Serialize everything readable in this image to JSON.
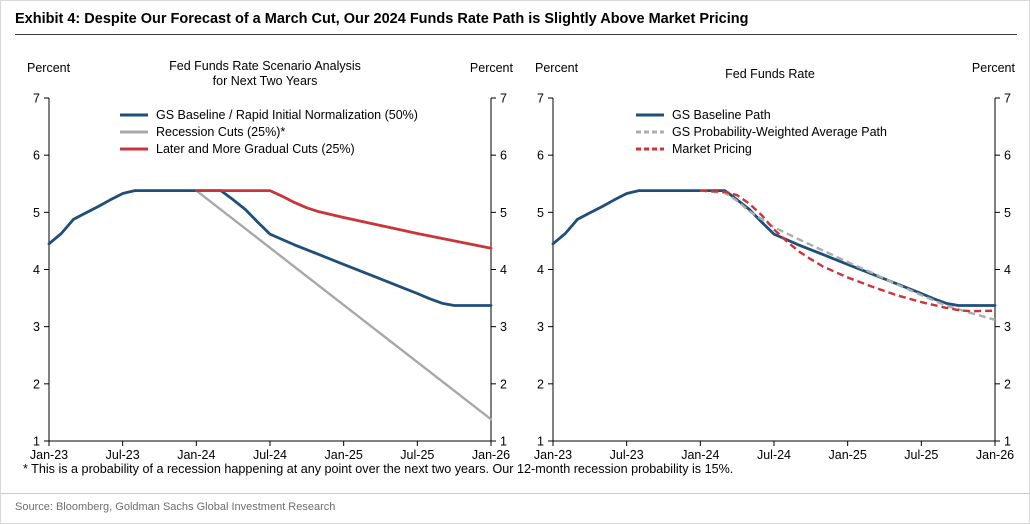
{
  "page": {
    "title": "Exhibit 4: Despite Our Forecast of a March Cut, Our 2024 Funds Rate Path is Slightly Above Market Pricing",
    "footnote": "* This is a probability of a recession happening at any point over the next two years.  Our 12-month recession probability is 15%.",
    "source": "Source: Bloomberg, Goldman Sachs Global Investment Research"
  },
  "chart_data": [
    {
      "type": "line",
      "title_lines": [
        "Fed Funds Rate Scenario Analysis",
        "for Next Two Years"
      ],
      "ylabel_left": "Percent",
      "ylabel_right": "Percent",
      "ylim": [
        1,
        7
      ],
      "xlim": [
        0,
        36
      ],
      "x_unit_note": "months since Jan-2023",
      "grid": false,
      "legend_position": "top-left-inside",
      "y_ticks": [
        1,
        2,
        3,
        4,
        5,
        6,
        7
      ],
      "x_ticks": [
        {
          "pos": 0,
          "label": "Jan-23"
        },
        {
          "pos": 6,
          "label": "Jul-23"
        },
        {
          "pos": 12,
          "label": "Jan-24"
        },
        {
          "pos": 18,
          "label": "Jul-24"
        },
        {
          "pos": 24,
          "label": "Jan-25"
        },
        {
          "pos": 30,
          "label": "Jul-25"
        },
        {
          "pos": 36,
          "label": "Jan-26"
        }
      ],
      "series": [
        {
          "name": "GS Baseline / Rapid Initial Normalization (50%)",
          "color": "#1f4e79",
          "dash": "solid",
          "width": 2.8,
          "points": [
            [
              0,
              4.45
            ],
            [
              1,
              4.63
            ],
            [
              2,
              4.88
            ],
            [
              3,
              4.99
            ],
            [
              4,
              5.1
            ],
            [
              5,
              5.22
            ],
            [
              6,
              5.33
            ],
            [
              7,
              5.38
            ],
            [
              14,
              5.38
            ],
            [
              15,
              5.22
            ],
            [
              16,
              5.05
            ],
            [
              17,
              4.83
            ],
            [
              18,
              4.62
            ],
            [
              20,
              4.43
            ],
            [
              22,
              4.26
            ],
            [
              24,
              4.09
            ],
            [
              26,
              3.92
            ],
            [
              28,
              3.75
            ],
            [
              30,
              3.58
            ],
            [
              31,
              3.49
            ],
            [
              32,
              3.41
            ],
            [
              33,
              3.37
            ],
            [
              36,
              3.37
            ]
          ]
        },
        {
          "name": "Recession Cuts (25%)*",
          "color": "#a8a8a8",
          "dash": "solid",
          "width": 2.4,
          "points": [
            [
              0,
              4.45
            ],
            [
              1,
              4.63
            ],
            [
              2,
              4.88
            ],
            [
              3,
              4.99
            ],
            [
              4,
              5.1
            ],
            [
              5,
              5.22
            ],
            [
              6,
              5.33
            ],
            [
              7,
              5.38
            ],
            [
              12,
              5.38
            ],
            [
              36,
              1.38
            ]
          ]
        },
        {
          "name": "Later and More Gradual Cuts (25%)",
          "color": "#c9353a",
          "dash": "solid",
          "width": 2.8,
          "points": [
            [
              12,
              5.38
            ],
            [
              18,
              5.38
            ],
            [
              19,
              5.28
            ],
            [
              20,
              5.17
            ],
            [
              21,
              5.08
            ],
            [
              22,
              5.01
            ],
            [
              24,
              4.91
            ],
            [
              27,
              4.77
            ],
            [
              30,
              4.63
            ],
            [
              33,
              4.5
            ],
            [
              36,
              4.37
            ]
          ]
        }
      ]
    },
    {
      "type": "line",
      "title_lines": [
        "Fed Funds Rate"
      ],
      "ylabel_left": "Percent",
      "ylabel_right": "Percent",
      "ylim": [
        1,
        7
      ],
      "xlim": [
        0,
        36
      ],
      "x_unit_note": "months since Jan-2023",
      "grid": false,
      "legend_position": "top-left-inside",
      "y_ticks": [
        1,
        2,
        3,
        4,
        5,
        6,
        7
      ],
      "x_ticks": [
        {
          "pos": 0,
          "label": "Jan-23"
        },
        {
          "pos": 6,
          "label": "Jul-23"
        },
        {
          "pos": 12,
          "label": "Jan-24"
        },
        {
          "pos": 18,
          "label": "Jul-24"
        },
        {
          "pos": 24,
          "label": "Jan-25"
        },
        {
          "pos": 30,
          "label": "Jul-25"
        },
        {
          "pos": 36,
          "label": "Jan-26"
        }
      ],
      "series": [
        {
          "name": "GS Baseline Path",
          "color": "#1f4e79",
          "dash": "solid",
          "width": 2.8,
          "points": [
            [
              0,
              4.45
            ],
            [
              1,
              4.63
            ],
            [
              2,
              4.88
            ],
            [
              3,
              4.99
            ],
            [
              4,
              5.1
            ],
            [
              5,
              5.22
            ],
            [
              6,
              5.33
            ],
            [
              7,
              5.38
            ],
            [
              14,
              5.38
            ],
            [
              15,
              5.22
            ],
            [
              16,
              5.05
            ],
            [
              17,
              4.83
            ],
            [
              18,
              4.62
            ],
            [
              20,
              4.43
            ],
            [
              22,
              4.26
            ],
            [
              24,
              4.09
            ],
            [
              26,
              3.92
            ],
            [
              28,
              3.75
            ],
            [
              30,
              3.58
            ],
            [
              31,
              3.49
            ],
            [
              32,
              3.41
            ],
            [
              33,
              3.37
            ],
            [
              36,
              3.37
            ]
          ]
        },
        {
          "name": "GS Probability-Weighted Average Path",
          "color": "#adadad",
          "dash": "dashed",
          "width": 2.4,
          "points": [
            [
              12,
              5.38
            ],
            [
              14,
              5.34
            ],
            [
              15,
              5.2
            ],
            [
              16,
              5.02
            ],
            [
              17,
              4.88
            ],
            [
              18,
              4.74
            ],
            [
              20,
              4.53
            ],
            [
              22,
              4.33
            ],
            [
              24,
              4.13
            ],
            [
              26,
              3.94
            ],
            [
              28,
              3.74
            ],
            [
              30,
              3.55
            ],
            [
              32,
              3.37
            ],
            [
              34,
              3.24
            ],
            [
              36,
              3.12
            ]
          ]
        },
        {
          "name": "Market Pricing",
          "color": "#c9353a",
          "dash": "dashed",
          "width": 2.4,
          "points": [
            [
              12,
              5.38
            ],
            [
              13,
              5.37
            ],
            [
              14,
              5.36
            ],
            [
              15,
              5.3
            ],
            [
              16,
              5.15
            ],
            [
              17,
              4.95
            ],
            [
              18,
              4.7
            ],
            [
              19,
              4.5
            ],
            [
              20,
              4.32
            ],
            [
              21,
              4.18
            ],
            [
              22,
              4.05
            ],
            [
              24,
              3.86
            ],
            [
              26,
              3.7
            ],
            [
              28,
              3.55
            ],
            [
              30,
              3.43
            ],
            [
              32,
              3.33
            ],
            [
              33,
              3.29
            ],
            [
              34,
              3.27
            ],
            [
              36,
              3.28
            ]
          ]
        }
      ]
    }
  ]
}
